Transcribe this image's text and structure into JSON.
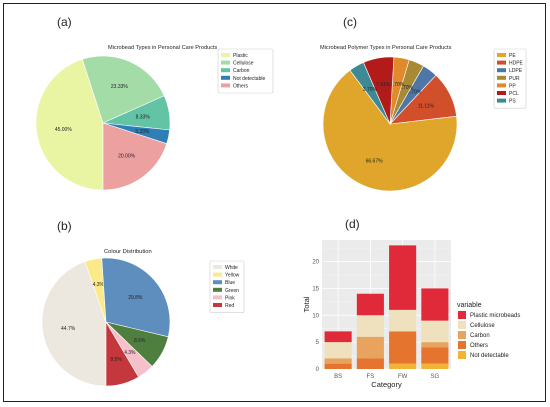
{
  "panel_labels": [
    "(a)",
    "(b)",
    "(c)",
    "(d)"
  ],
  "chart_data": [
    {
      "type": "pie",
      "title": "Microbead Types in Personal Care Products",
      "labels": [
        "Plastic",
        "Cellulose",
        "Carbon",
        "Not detectable",
        "Others"
      ],
      "values": [
        45.0,
        23.33,
        8.33,
        3.33,
        20.0
      ],
      "value_labels": [
        "45.00%",
        "23.33%",
        "8.33%",
        "3.33%",
        "20.00%"
      ],
      "colors": [
        "#eaf5a4",
        "#a4dca7",
        "#63c3a5",
        "#2f7eb6",
        "#eda0a0"
      ],
      "legend_placement": "right"
    },
    {
      "type": "pie",
      "title": "Colour Distribution",
      "labels": [
        "White",
        "Yellow",
        "Blue",
        "Green",
        "Pink",
        "Red"
      ],
      "values": [
        44.7,
        4.3,
        29.8,
        8.5,
        4.3,
        8.5
      ],
      "value_labels": [
        "44.7%",
        "4.3%",
        "29.8%",
        "8.5%",
        "4.3%",
        "8.5%"
      ],
      "colors": [
        "#ece8df",
        "#fce989",
        "#5d8ebd",
        "#4e7f3f",
        "#f6c0cb",
        "#c4373c"
      ],
      "legend_placement": "right"
    },
    {
      "type": "pie",
      "title": "Microbead Polymer Types in Personal Care Products",
      "labels": [
        "PE",
        "HDPE",
        "LDPE",
        "PUR",
        "PP",
        "PCL",
        "PS"
      ],
      "values": [
        66.67,
        11.11,
        3.7,
        3.7,
        3.7,
        7.41,
        3.7
      ],
      "value_labels": [
        "66.67%",
        "11.11%",
        "3.70%",
        "3.70%",
        "3.70%",
        "7.41%",
        "3.70%"
      ],
      "colors": [
        "#e0a62c",
        "#d24f2c",
        "#4e76a6",
        "#a98a34",
        "#e08a2c",
        "#b31b1b",
        "#3d8a95"
      ],
      "legend_placement": "right"
    },
    {
      "type": "bar",
      "stacked": true,
      "xlabel": "Category",
      "ylabel": "Total",
      "categories": [
        "BS",
        "FS",
        "FW",
        "SG"
      ],
      "legend_title": "variable",
      "legend_placement": "right",
      "grid": true,
      "ylim": [
        0,
        24
      ],
      "yticks": [
        0,
        5,
        10,
        15,
        20
      ],
      "stack_order": [
        "Not detectable",
        "Others",
        "Carbon",
        "Cellulose",
        "Plastic microbeads"
      ],
      "series": [
        {
          "name": "Plastic microbeads",
          "color": "#e02a3a",
          "values": [
            2,
            4,
            12,
            6
          ]
        },
        {
          "name": "Cellulose",
          "color": "#efe1bd",
          "values": [
            3,
            4,
            4,
            4
          ]
        },
        {
          "name": "Carbon",
          "color": "#e8a35e",
          "values": [
            1,
            4,
            0,
            1
          ]
        },
        {
          "name": "Others",
          "color": "#e5742f",
          "values": [
            1,
            2,
            6,
            3
          ]
        },
        {
          "name": "Not detectable",
          "color": "#f2b436",
          "values": [
            0,
            0,
            1,
            1
          ]
        }
      ]
    }
  ]
}
